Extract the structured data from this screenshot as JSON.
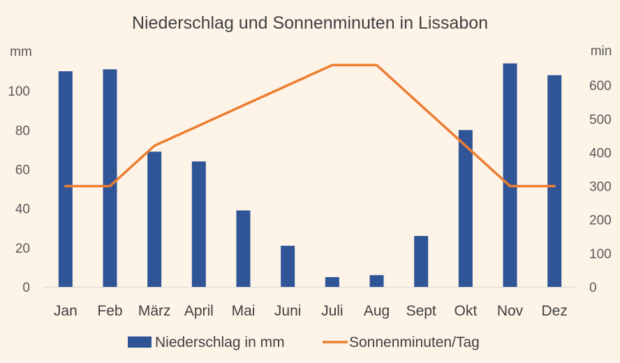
{
  "chart_data": {
    "type": "bar",
    "title": "Niederschlag und Sonnenminuten in Lissabon",
    "categories": [
      "Jan",
      "Feb",
      "März",
      "April",
      "Mai",
      "Juni",
      "Juli",
      "Aug",
      "Sept",
      "Okt",
      "Nov",
      "Dez"
    ],
    "series": [
      {
        "name": "Niederschlag in mm",
        "type": "bar",
        "axis": "left",
        "color": "#2f5597",
        "values": [
          110,
          111,
          69,
          64,
          39,
          21,
          5,
          6,
          26,
          80,
          114,
          108
        ]
      },
      {
        "name": "Sonnenminuten/Tag",
        "type": "line",
        "axis": "right",
        "color": "#ed7d31",
        "values": [
          300,
          300,
          420,
          480,
          540,
          600,
          660,
          660,
          540,
          420,
          300,
          300
        ]
      }
    ],
    "y_left": {
      "label": "mm",
      "ylim": [
        0,
        120
      ],
      "ticks": [
        0,
        20,
        40,
        60,
        80,
        100
      ]
    },
    "y_right": {
      "label": "min",
      "ylim": [
        0,
        700
      ],
      "ticks": [
        0,
        100,
        200,
        300,
        400,
        500,
        600
      ]
    },
    "grid": false,
    "legend": "bottom",
    "background": "#fdf3e7",
    "text_color": "#404040"
  }
}
